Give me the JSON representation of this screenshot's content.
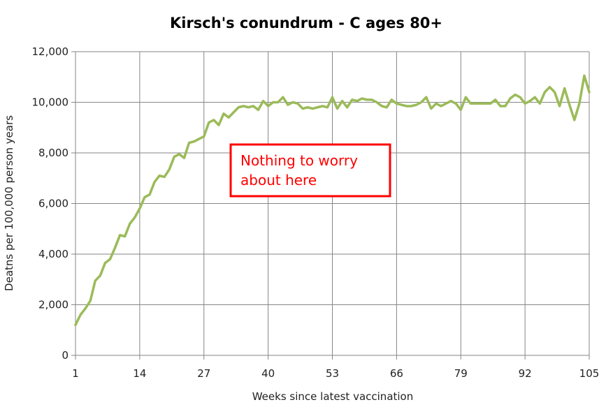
{
  "chart_data": {
    "type": "line",
    "title": "Kirsch's conundrum - C ages 80+",
    "xlabel": "Weeks since latest vaccination",
    "ylabel": "Deatns per 100,000 person years",
    "xlim": [
      1,
      105
    ],
    "ylim": [
      0,
      12000
    ],
    "x_ticks": [
      1,
      14,
      27,
      40,
      53,
      66,
      79,
      92,
      105
    ],
    "y_ticks": [
      0,
      2000,
      4000,
      6000,
      8000,
      10000,
      12000
    ],
    "y_tick_labels": [
      "0",
      "2,000",
      "4,000",
      "6,000",
      "8,000",
      "10,000",
      "12,000"
    ],
    "grid": true,
    "line_color": "#9bbb59",
    "annotation": {
      "lines": [
        "Nothing to worry",
        "about here"
      ],
      "color": "#ff0000",
      "border_color": "#ff0000"
    },
    "series": [
      {
        "x": [
          1,
          2,
          3,
          4,
          5,
          6,
          7,
          8,
          9,
          10,
          11,
          12,
          13,
          14,
          15,
          16,
          17,
          18,
          19,
          20,
          21,
          22,
          23,
          24,
          25,
          26,
          27,
          28,
          29,
          30,
          31,
          32,
          33,
          34,
          35,
          36,
          37,
          38,
          39,
          40,
          41,
          42,
          43,
          44,
          45,
          46,
          47,
          48,
          49,
          50,
          51,
          52,
          53,
          54,
          55,
          56,
          57,
          58,
          59,
          60,
          61,
          62,
          63,
          64,
          65,
          66,
          67,
          68,
          69,
          70,
          71,
          72,
          73,
          74,
          75,
          76,
          77,
          78,
          79,
          80,
          81,
          82,
          83,
          84,
          85,
          86,
          87,
          88,
          89,
          90,
          91,
          92,
          93,
          94,
          95,
          96,
          97,
          98,
          99,
          100,
          101,
          102,
          103,
          104,
          105
        ],
        "values": [
          1200,
          1600,
          1850,
          2150,
          2950,
          3150,
          3650,
          3800,
          4250,
          4750,
          4700,
          5200,
          5450,
          5800,
          6250,
          6350,
          6850,
          7100,
          7050,
          7350,
          7850,
          7950,
          7800,
          8400,
          8450,
          8550,
          8650,
          9200,
          9300,
          9100,
          9550,
          9400,
          9600,
          9800,
          9850,
          9800,
          9850,
          9700,
          10050,
          9850,
          10000,
          10000,
          10200,
          9900,
          10000,
          9950,
          9750,
          9800,
          9750,
          9800,
          9850,
          9800,
          10200,
          9750,
          10050,
          9800,
          10100,
          10050,
          10150,
          10100,
          10100,
          10000,
          9850,
          9800,
          10100,
          9950,
          9900,
          9850,
          9850,
          9900,
          10000,
          10200,
          9750,
          9950,
          9850,
          9950,
          10050,
          9950,
          9700,
          10200,
          9950,
          9950,
          9950,
          9950,
          9950,
          10100,
          9850,
          9850,
          10150,
          10300,
          10200,
          9950,
          10050,
          10200,
          9950,
          10400,
          10600,
          10400,
          9850,
          10550,
          9900,
          9300,
          9950,
          11050,
          10400
        ]
      }
    ]
  }
}
